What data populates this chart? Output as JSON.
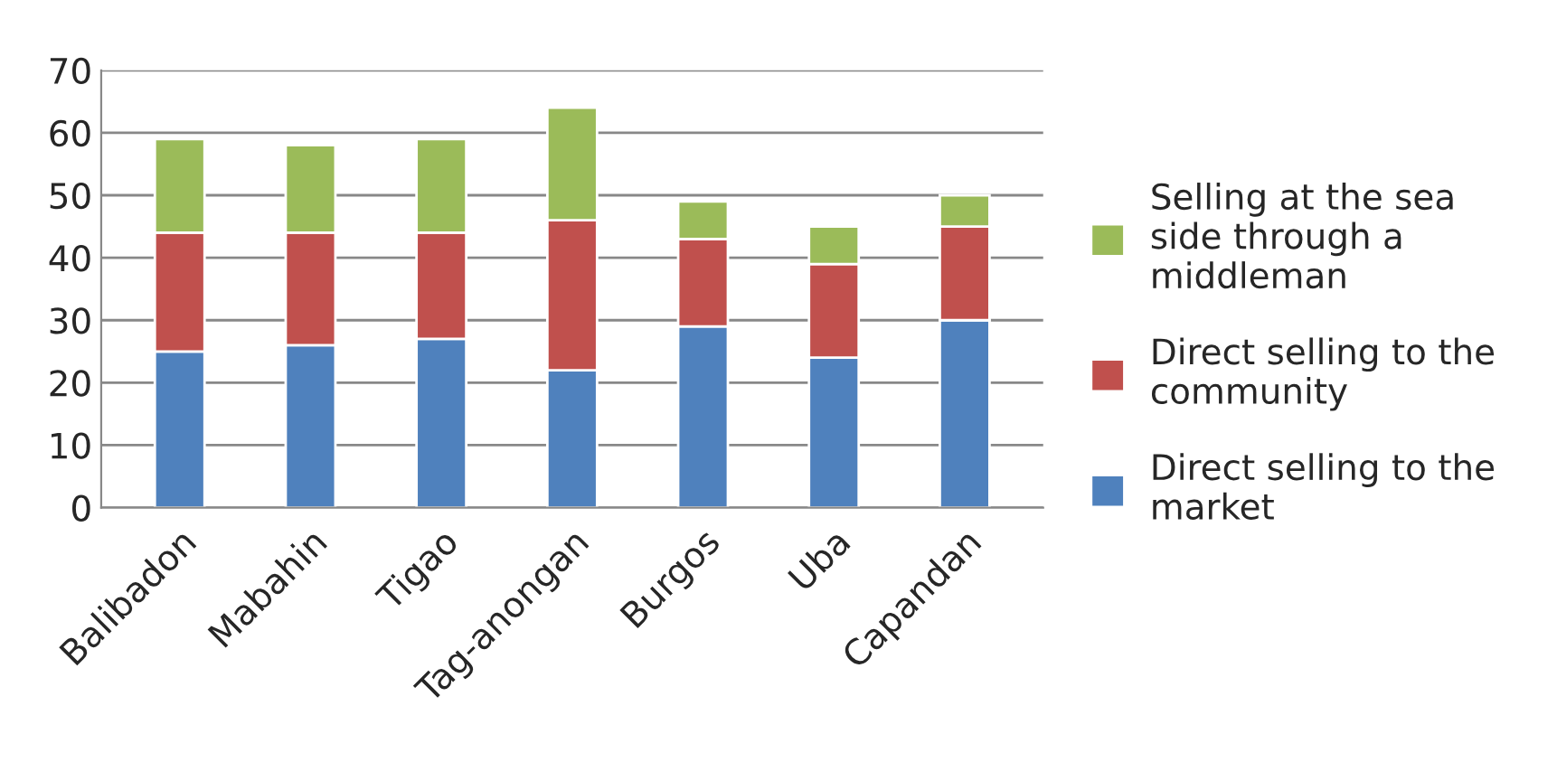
{
  "chart_data": {
    "type": "bar",
    "stacked": true,
    "categories": [
      "Balibadon",
      "Mabahin",
      "Tigao",
      "Tag-anongan",
      "Burgos",
      "Uba",
      "Capandan"
    ],
    "series": [
      {
        "name": "Direct selling to the market",
        "color": "#4f81bd",
        "values": [
          25,
          26,
          27,
          22,
          29,
          24,
          30
        ]
      },
      {
        "name": "Direct selling to the community",
        "color": "#c0504d",
        "values": [
          19,
          18,
          17,
          24,
          14,
          15,
          15
        ]
      },
      {
        "name": "Selling at the sea side through a middleman",
        "color": "#9bbb59",
        "values": [
          15,
          14,
          15,
          18,
          6,
          6,
          5
        ]
      }
    ],
    "ylim": [
      0,
      70
    ],
    "yticks": [
      0,
      10,
      20,
      30,
      40,
      50,
      60,
      70
    ],
    "grid": "y",
    "legend": "right"
  }
}
